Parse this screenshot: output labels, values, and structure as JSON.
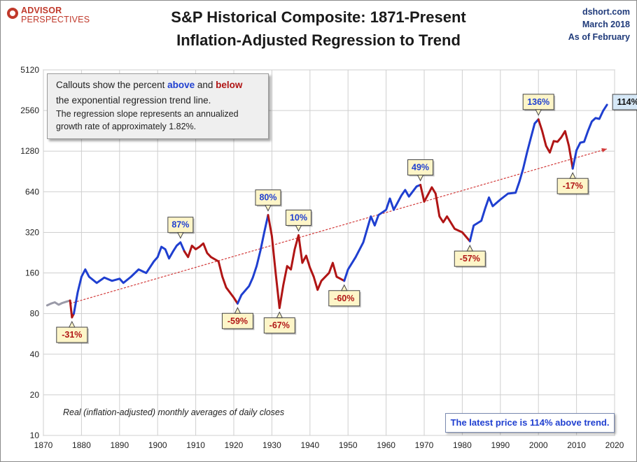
{
  "header": {
    "title_line1": "S&P Historical Composite: 1871-Present",
    "title_line2": "Inflation-Adjusted Regression to Trend",
    "logo_line1": "ADVISOR",
    "logo_line2": "PERSPECTIVES",
    "source_site": "dshort.com",
    "source_date": "March 2018",
    "source_asof": "As of February"
  },
  "callout_box": {
    "line1_pre": "Callouts show the percent ",
    "line1_above": "above",
    "line1_mid": " and ",
    "line1_below": "below",
    "line2": "the exponential regression trend line.",
    "line3": "The regression slope represents an annualized",
    "line4": "growth rate of approximately 1.82%."
  },
  "footnote": "Real (inflation-adjusted) monthly averages of daily closes",
  "latest_note": "The latest price is 114% above trend.",
  "colors": {
    "above": "#1f3fd0",
    "below": "#b01515",
    "early": "#9a9aa8",
    "trend": "#d23a3a",
    "callout_bg": "#fdf5c8",
    "latest_bg": "#d6e8f7"
  },
  "chart_data": {
    "type": "line",
    "y_scale": "log2",
    "xlim": [
      1870,
      2020
    ],
    "ylim": [
      10,
      5120
    ],
    "x_ticks": [
      "1870",
      "1880",
      "1890",
      "1900",
      "1910",
      "1920",
      "1930",
      "1940",
      "1950",
      "1960",
      "1970",
      "1980",
      "1990",
      "2000",
      "2010",
      "2020"
    ],
    "y_ticks": [
      "10",
      "20",
      "40",
      "80",
      "160",
      "320",
      "640",
      "1280",
      "2560",
      "5120"
    ],
    "trend": {
      "from": [
        1877,
        95
      ],
      "to": [
        2018,
        1330
      ]
    },
    "series": [
      {
        "segment": "early",
        "points": [
          [
            1871,
            92
          ],
          [
            1872,
            95
          ],
          [
            1873,
            97
          ],
          [
            1874,
            93
          ],
          [
            1875,
            96
          ],
          [
            1876,
            98
          ],
          [
            1877,
            100
          ]
        ]
      },
      {
        "segment": "below",
        "points": [
          [
            1877,
            100
          ],
          [
            1877.5,
            75
          ],
          [
            1878,
            80
          ]
        ]
      },
      {
        "segment": "above",
        "points": [
          [
            1878,
            80
          ],
          [
            1879,
            115
          ],
          [
            1880,
            150
          ],
          [
            1881,
            170
          ],
          [
            1882,
            150
          ],
          [
            1884,
            135
          ],
          [
            1886,
            148
          ],
          [
            1888,
            140
          ],
          [
            1890,
            145
          ],
          [
            1891,
            135
          ],
          [
            1893,
            150
          ],
          [
            1895,
            170
          ],
          [
            1897,
            160
          ],
          [
            1899,
            195
          ],
          [
            1900,
            210
          ],
          [
            1901,
            250
          ],
          [
            1902,
            240
          ],
          [
            1903,
            205
          ],
          [
            1904,
            230
          ],
          [
            1905,
            255
          ],
          [
            1906,
            270
          ],
          [
            1907,
            232
          ]
        ]
      },
      {
        "segment": "below",
        "points": [
          [
            1907,
            232
          ],
          [
            1908,
            210
          ],
          [
            1909,
            255
          ],
          [
            1910,
            240
          ],
          [
            1911,
            250
          ],
          [
            1912,
            265
          ],
          [
            1913,
            225
          ],
          [
            1914,
            210
          ],
          [
            1916,
            195
          ],
          [
            1917,
            150
          ],
          [
            1918,
            125
          ],
          [
            1920,
            105
          ],
          [
            1921,
            95
          ]
        ]
      },
      {
        "segment": "above",
        "points": [
          [
            1921,
            95
          ],
          [
            1922,
            110
          ],
          [
            1924,
            128
          ],
          [
            1925,
            148
          ],
          [
            1926,
            180
          ],
          [
            1927,
            235
          ],
          [
            1928,
            320
          ],
          [
            1929,
            430
          ]
        ]
      },
      {
        "segment": "below",
        "points": [
          [
            1929,
            430
          ],
          [
            1930,
            300
          ],
          [
            1931,
            160
          ],
          [
            1932,
            88
          ],
          [
            1933,
            130
          ],
          [
            1934,
            180
          ],
          [
            1935,
            170
          ],
          [
            1936,
            240
          ],
          [
            1937,
            305
          ],
          [
            1938,
            190
          ],
          [
            1939,
            215
          ],
          [
            1940,
            175
          ],
          [
            1941,
            150
          ],
          [
            1942,
            120
          ],
          [
            1943,
            140
          ],
          [
            1945,
            160
          ],
          [
            1946,
            190
          ],
          [
            1947,
            150
          ],
          [
            1948,
            145
          ],
          [
            1949,
            140
          ]
        ]
      },
      {
        "segment": "above",
        "points": [
          [
            1949,
            140
          ],
          [
            1950,
            170
          ],
          [
            1952,
            210
          ],
          [
            1954,
            270
          ],
          [
            1956,
            420
          ],
          [
            1957,
            360
          ],
          [
            1958,
            430
          ],
          [
            1960,
            470
          ],
          [
            1961,
            570
          ],
          [
            1962,
            470
          ],
          [
            1964,
            600
          ],
          [
            1965,
            660
          ],
          [
            1966,
            590
          ],
          [
            1968,
            700
          ],
          [
            1969,
            720
          ]
        ]
      },
      {
        "segment": "below",
        "points": [
          [
            1969,
            720
          ],
          [
            1970,
            540
          ],
          [
            1971,
            610
          ],
          [
            1972,
            690
          ],
          [
            1973,
            620
          ],
          [
            1974,
            420
          ],
          [
            1975,
            380
          ],
          [
            1976,
            420
          ],
          [
            1978,
            340
          ],
          [
            1980,
            320
          ],
          [
            1982,
            275
          ]
        ]
      },
      {
        "segment": "above",
        "points": [
          [
            1982,
            275
          ],
          [
            1983,
            360
          ],
          [
            1985,
            390
          ],
          [
            1986,
            480
          ],
          [
            1987,
            580
          ],
          [
            1988,
            500
          ],
          [
            1990,
            560
          ],
          [
            1992,
            620
          ],
          [
            1994,
            630
          ],
          [
            1995,
            760
          ],
          [
            1996,
            950
          ],
          [
            1997,
            1250
          ],
          [
            1998,
            1600
          ],
          [
            1999,
            2050
          ],
          [
            2000,
            2200
          ]
        ]
      },
      {
        "segment": "below",
        "points": [
          [
            2000,
            2200
          ],
          [
            2001,
            1800
          ],
          [
            2002,
            1400
          ],
          [
            2003,
            1250
          ],
          [
            2004,
            1520
          ],
          [
            2005,
            1500
          ],
          [
            2006,
            1620
          ],
          [
            2007,
            1800
          ],
          [
            2008,
            1400
          ],
          [
            2009,
            950
          ]
        ]
      },
      {
        "segment": "above",
        "points": [
          [
            2009,
            950
          ],
          [
            2010,
            1300
          ],
          [
            2011,
            1480
          ],
          [
            2012,
            1500
          ],
          [
            2013,
            1800
          ],
          [
            2014,
            2120
          ],
          [
            2015,
            2250
          ],
          [
            2016,
            2220
          ],
          [
            2017,
            2550
          ],
          [
            2018,
            2820
          ]
        ]
      }
    ],
    "callouts": [
      {
        "label": "-31%",
        "x": 1877.5,
        "y": 75,
        "kind": "below",
        "side": "below"
      },
      {
        "label": "87%",
        "x": 1906,
        "y": 270,
        "kind": "above",
        "side": "above"
      },
      {
        "label": "-59%",
        "x": 1921,
        "y": 95,
        "kind": "below",
        "side": "below"
      },
      {
        "label": "80%",
        "x": 1929,
        "y": 430,
        "kind": "above",
        "side": "above"
      },
      {
        "label": "-67%",
        "x": 1932,
        "y": 88,
        "kind": "below",
        "side": "below"
      },
      {
        "label": "10%",
        "x": 1937,
        "y": 305,
        "kind": "above",
        "side": "above"
      },
      {
        "label": "-60%",
        "x": 1949,
        "y": 140,
        "kind": "below",
        "side": "below"
      },
      {
        "label": "49%",
        "x": 1969,
        "y": 720,
        "kind": "above",
        "side": "above"
      },
      {
        "label": "-57%",
        "x": 1982,
        "y": 275,
        "kind": "below",
        "side": "below"
      },
      {
        "label": "136%",
        "x": 2000,
        "y": 2200,
        "kind": "above",
        "side": "above"
      },
      {
        "label": "-17%",
        "x": 2009,
        "y": 950,
        "kind": "below",
        "side": "below"
      },
      {
        "label": "114%",
        "x": 2018,
        "y": 2820,
        "kind": "latest",
        "side": "right"
      }
    ]
  }
}
